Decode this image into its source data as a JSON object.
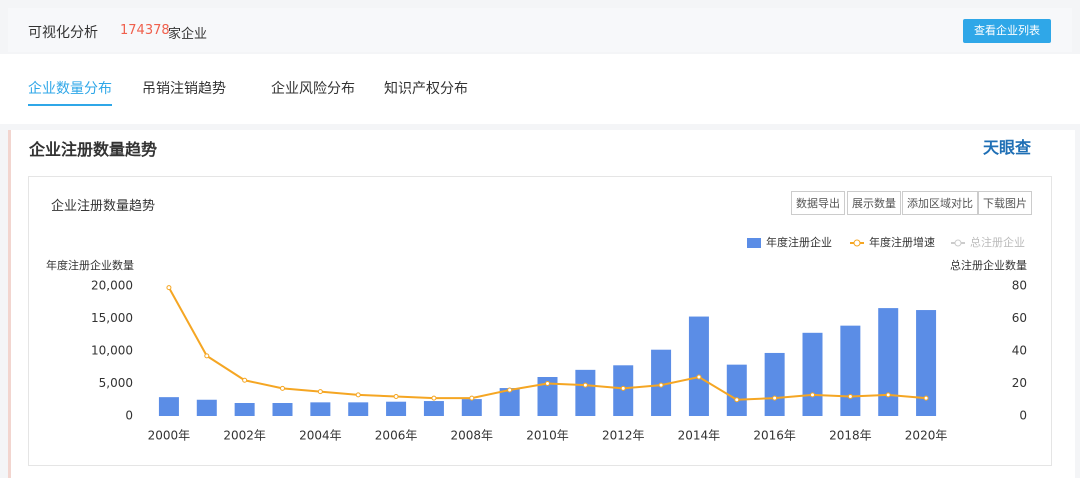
{
  "header": {
    "title": "可视化分析",
    "count": "174378",
    "count_unit": "家企业",
    "button": "查看企业列表"
  },
  "tabs": [
    "企业数量分布",
    "吊销注销趋势",
    "企业风险分布",
    "知识产权分布"
  ],
  "section_title": "企业注册数量趋势",
  "logo": "天眼查",
  "panel": {
    "title": "企业注册数量趋势",
    "buttons": [
      "数据导出",
      "展示数量",
      "添加区域对比",
      "下载图片"
    ]
  },
  "chart_data": {
    "type": "bar",
    "categories": [
      "2000年",
      null,
      "2002年",
      null,
      "2004年",
      null,
      "2006年",
      null,
      "2008年",
      null,
      "2010年",
      null,
      "2012年",
      null,
      "2014年",
      null,
      "2016年",
      null,
      "2018年",
      null,
      "2020年"
    ],
    "series": [
      {
        "name": "年度注册企业",
        "color": "#5b8de6",
        "values": [
          2900,
          2500,
          2000,
          2000,
          2100,
          2100,
          2200,
          2300,
          2600,
          4300,
          6000,
          7100,
          7800,
          10200,
          15300,
          7900,
          9700,
          12800,
          13900,
          16600,
          16300
        ]
      },
      {
        "name": "年度注册增速",
        "color": "#f5a623",
        "type": "line",
        "axis": "y2",
        "values": [
          79,
          37,
          22,
          17,
          15,
          13,
          12,
          11,
          11,
          16,
          20,
          19,
          17,
          19,
          24,
          10,
          11,
          13,
          12,
          13,
          11
        ]
      }
    ],
    "inactive_legend": "总注册企业",
    "ylabel": "年度注册企业数量",
    "y2label": "总注册企业数量",
    "ylim": [
      0,
      20000
    ],
    "yticks": [
      0,
      {
        "value": 5000,
        "label": "5,000"
      },
      {
        "value": 10000,
        "label": "10,000"
      },
      {
        "value": 15000,
        "label": "15,000"
      },
      {
        "value": 20000,
        "label": "20,000"
      }
    ],
    "y2lim": [
      0,
      80
    ],
    "y2ticks": [
      0,
      20,
      40,
      60,
      80
    ]
  }
}
